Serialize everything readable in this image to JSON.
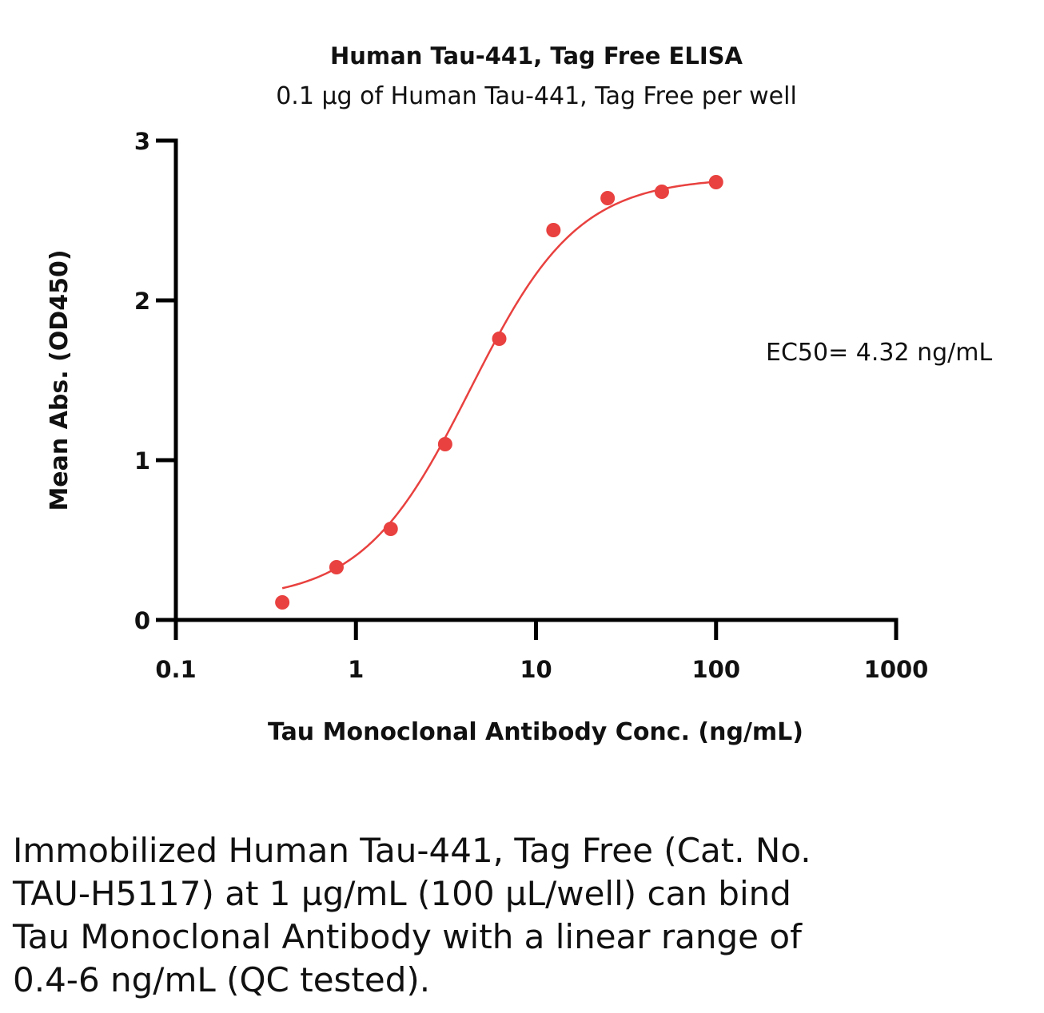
{
  "chart_data": {
    "type": "scatter",
    "title": "Human Tau-441, Tag Free ELISA",
    "subtitle": "0.1 µg of Human Tau-441, Tag Free per well",
    "xlabel": "Tau Monoclonal Antibody Conc. (ng/mL)",
    "ylabel": "Mean Abs. (OD450)",
    "x_scale": "log",
    "xlim": [
      0.1,
      1000
    ],
    "ylim": [
      0,
      3
    ],
    "x_ticks": [
      0.1,
      1,
      10,
      100,
      1000
    ],
    "x_tick_labels": [
      "0.1",
      "1",
      "10",
      "100",
      "1000"
    ],
    "y_ticks": [
      0,
      1,
      2,
      3
    ],
    "y_tick_labels": [
      "0",
      "1",
      "2",
      "3"
    ],
    "grid": false,
    "series": [
      {
        "x": [
          0.39,
          0.78,
          1.56,
          3.13,
          6.25,
          12.5,
          25,
          50,
          100
        ],
        "y": [
          0.11,
          0.33,
          0.57,
          1.1,
          1.76,
          2.44,
          2.64,
          2.68,
          2.74
        ],
        "color": "#e8413f",
        "fit": "4PL",
        "fit_params": {
          "bottom": 0.12,
          "top": 2.77,
          "ec50": 4.32,
          "hill": 1.45
        }
      }
    ],
    "annotations": [
      {
        "text": "EC50= 4.32 ng/mL"
      }
    ]
  },
  "caption": "Immobilized Human Tau-441, Tag Free (Cat. No. TAU-H5117) at 1 µg/mL (100 µL/well) can bind Tau Monoclonal Antibody with a linear range of 0.4-6 ng/mL (QC tested)."
}
